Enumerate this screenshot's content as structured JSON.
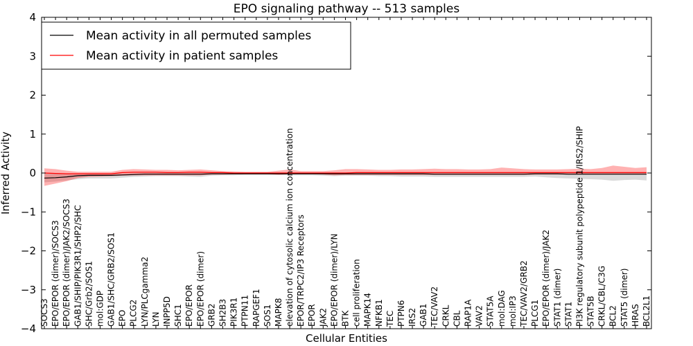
{
  "chart_data": {
    "type": "line",
    "title": "EPO signaling pathway -- 513 samples",
    "xlabel": "Cellular Entities",
    "ylabel": "Inferred Activity",
    "ylim": [
      -4,
      4
    ],
    "yticks": [
      "−4",
      "−3",
      "−2",
      "−1",
      "0",
      "1",
      "2",
      "3",
      "4"
    ],
    "yticks_values": [
      -4,
      -3,
      -2,
      -1,
      0,
      1,
      2,
      3,
      4
    ],
    "legend_position": "top-left",
    "categories": [
      "SOCS3",
      "EPO/EPOR (dimer)/SOCS3",
      "EPO/EPOR (dimer)/JAK2/SOCS3",
      "GAB1/SHIP/PIK3R1/SHP2/SHC",
      "SHC/Grb2/SOS1",
      "mol:GDP",
      "GAB1/SHC/GRB2/SOS1",
      "EPO",
      "PLCG2",
      "LYN/PLCgamma2",
      "LYN",
      "INPP5D",
      "SHC1",
      "EPO/EPOR",
      "EPO/EPOR (dimer)",
      "GRB2",
      "SH2B3",
      "PIK3R1",
      "PTPN11",
      "RAPGEF1",
      "SOS1",
      "MAPK8",
      "elevation of cytosolic calcium ion concentration",
      "EPOR/TRPC2/IP3 Receptors",
      "EPOR",
      "JAK2",
      "EPO/EPOR (dimer)/LYN",
      "BTK",
      "cell proliferation",
      "MAPK14",
      "NFKB1",
      "TEC",
      "PTPN6",
      "IRS2",
      "GAB1",
      "TEC/VAV2",
      "CRKL",
      "CBL",
      "RAP1A",
      "VAV2",
      "STAT5A",
      "mol:DAG",
      "mol:IP3",
      "TEC/VAV2/GRB2",
      "PLCG1",
      "EPO/EPOR (dimer)/JAK2",
      "STAT1 (dimer)",
      "STAT1",
      "PI3K regulatory subunit polypeptide 1/IRS2/SHIP",
      "STAT5B",
      "CRKL/CBL/C3G",
      "BCL2",
      "STAT5 (dimer)",
      "HRAS",
      "BCL2L1"
    ],
    "series": [
      {
        "name": "Mean activity in all permuted samples",
        "color": "#000000",
        "values": [
          -0.13,
          -0.12,
          -0.1,
          -0.07,
          -0.06,
          -0.06,
          -0.06,
          -0.05,
          -0.04,
          -0.03,
          -0.03,
          -0.03,
          -0.03,
          -0.03,
          -0.03,
          -0.02,
          -0.02,
          -0.02,
          -0.02,
          -0.02,
          -0.02,
          -0.02,
          -0.02,
          -0.02,
          -0.02,
          -0.02,
          -0.02,
          -0.02,
          -0.02,
          -0.02,
          -0.02,
          -0.02,
          -0.02,
          -0.02,
          -0.02,
          -0.03,
          -0.03,
          -0.03,
          -0.03,
          -0.03,
          -0.03,
          -0.03,
          -0.03,
          -0.03,
          -0.02,
          -0.02,
          -0.02,
          -0.03,
          -0.03,
          -0.03,
          -0.03,
          -0.03,
          -0.03,
          -0.03,
          -0.03
        ],
        "band_lower": [
          -0.24,
          -0.22,
          -0.19,
          -0.16,
          -0.14,
          -0.14,
          -0.14,
          -0.12,
          -0.1,
          -0.09,
          -0.08,
          -0.08,
          -0.08,
          -0.09,
          -0.1,
          -0.07,
          -0.06,
          -0.06,
          -0.05,
          -0.05,
          -0.05,
          -0.05,
          -0.06,
          -0.06,
          -0.06,
          -0.07,
          -0.08,
          -0.07,
          -0.07,
          -0.07,
          -0.08,
          -0.08,
          -0.09,
          -0.09,
          -0.09,
          -0.1,
          -0.1,
          -0.1,
          -0.1,
          -0.1,
          -0.1,
          -0.1,
          -0.1,
          -0.1,
          -0.09,
          -0.11,
          -0.13,
          -0.14,
          -0.15,
          -0.16,
          -0.17,
          -0.2,
          -0.18,
          -0.17,
          -0.19
        ],
        "band_upper": [
          -0.02,
          -0.02,
          -0.01,
          -0.01,
          -0.01,
          -0.01,
          -0.01,
          -0.01,
          0.0,
          0.0,
          0.0,
          0.0,
          0.0,
          0.01,
          0.01,
          0.01,
          0.01,
          0.01,
          0.01,
          0.01,
          0.01,
          0.01,
          0.01,
          0.01,
          0.01,
          0.01,
          0.01,
          0.01,
          0.01,
          0.01,
          0.01,
          0.01,
          0.01,
          0.01,
          0.01,
          0.01,
          0.01,
          0.01,
          0.01,
          0.01,
          0.01,
          0.01,
          0.01,
          0.01,
          0.01,
          0.01,
          0.01,
          0.01,
          0.01,
          0.01,
          0.01,
          0.01,
          0.01,
          0.01,
          0.01
        ]
      },
      {
        "name": "Mean activity in patient samples",
        "color": "#ff0000",
        "values": [
          0.0,
          -0.01,
          -0.02,
          -0.02,
          -0.02,
          -0.02,
          -0.02,
          0.01,
          0.02,
          0.02,
          0.02,
          0.01,
          0.01,
          0.02,
          0.02,
          0.01,
          0.01,
          0.0,
          0.0,
          0.0,
          0.0,
          0.0,
          0.0,
          0.0,
          0.0,
          0.0,
          0.0,
          0.0,
          0.01,
          0.01,
          0.01,
          0.01,
          0.01,
          0.01,
          0.01,
          0.01,
          0.01,
          0.01,
          0.01,
          0.01,
          0.01,
          0.01,
          0.01,
          0.01,
          0.01,
          0.01,
          0.01,
          0.01,
          0.01,
          0.01,
          0.01,
          0.01,
          0.01,
          0.01,
          0.01
        ],
        "band_lower": [
          -0.33,
          -0.27,
          -0.21,
          -0.13,
          -0.1,
          -0.09,
          -0.08,
          -0.07,
          -0.06,
          -0.06,
          -0.06,
          -0.06,
          -0.06,
          -0.06,
          -0.06,
          -0.04,
          -0.04,
          -0.03,
          -0.03,
          -0.03,
          -0.03,
          -0.05,
          -0.03,
          -0.03,
          -0.03,
          -0.04,
          -0.06,
          -0.05,
          -0.05,
          -0.05,
          -0.05,
          -0.05,
          -0.05,
          -0.05,
          -0.05,
          -0.05,
          -0.05,
          -0.05,
          -0.05,
          -0.05,
          -0.05,
          -0.05,
          -0.05,
          -0.05,
          -0.04,
          -0.04,
          -0.04,
          -0.04,
          -0.04,
          -0.04,
          -0.04,
          -0.04,
          -0.04,
          -0.04,
          -0.04
        ],
        "band_upper": [
          0.12,
          0.1,
          0.06,
          0.03,
          0.03,
          0.03,
          0.03,
          0.08,
          0.1,
          0.09,
          0.08,
          0.08,
          0.07,
          0.08,
          0.09,
          0.07,
          0.05,
          0.04,
          0.03,
          0.03,
          0.03,
          0.06,
          0.09,
          0.05,
          0.05,
          0.05,
          0.07,
          0.1,
          0.1,
          0.09,
          0.08,
          0.08,
          0.09,
          0.09,
          0.1,
          0.11,
          0.1,
          0.1,
          0.09,
          0.09,
          0.1,
          0.14,
          0.12,
          0.1,
          0.09,
          0.09,
          0.09,
          0.1,
          0.11,
          0.1,
          0.13,
          0.19,
          0.16,
          0.13,
          0.15
        ]
      }
    ]
  }
}
